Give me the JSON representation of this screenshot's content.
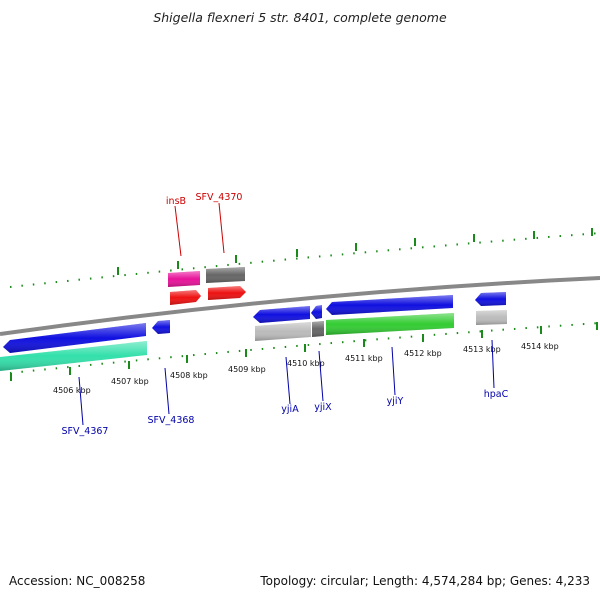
{
  "title": "Shigella flexneri 5 str. 8401, complete genome",
  "footer": {
    "accession": "Accession: NC_008258",
    "summary": "Topology: circular; Length: 4,574,284 bp; Genes: 4,233"
  },
  "colors": {
    "backbone": "#888888",
    "tick": "#1a8a1a",
    "label_reverse": "#cc0000",
    "label_forward": "#0000aa",
    "blue": "#1010e0",
    "red": "#ee1111",
    "pink": "#e8139a",
    "teal": "#33e0aa",
    "green": "#33cc33",
    "light_gray": "#bbbbbb",
    "dark_gray": "#666666"
  },
  "scale_labels": [
    "4506 kbp",
    "4507 kbp",
    "4508 kbp",
    "4509 kbp",
    "4510 kbp",
    "4511 kbp",
    "4512 kbp",
    "4513 kbp",
    "4514 kbp"
  ],
  "gene_labels_top": [
    "insB",
    "SFV_4370"
  ],
  "gene_labels_bottom": [
    "SFV_4367",
    "SFV_4368",
    "yjiA",
    "yjiX",
    "yjiY",
    "hpaC"
  ]
}
